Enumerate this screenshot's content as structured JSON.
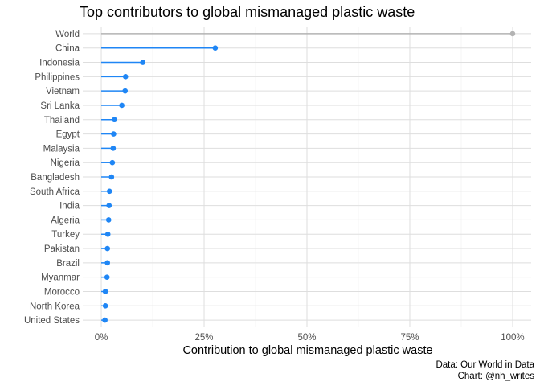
{
  "chart_data": {
    "type": "lollipop",
    "title": "Top contributors to global mismanaged plastic waste",
    "xlabel": "Contribution to global mismanaged plastic waste",
    "ylabel": "",
    "xlim": [
      -4.5,
      104.5
    ],
    "x_ticks": [
      0,
      25,
      50,
      75,
      100
    ],
    "x_tick_labels": [
      "0%",
      "25%",
      "50%",
      "75%",
      "100%"
    ],
    "grid": true,
    "categories": [
      "World",
      "China",
      "Indonesia",
      "Philippines",
      "Vietnam",
      "Sri Lanka",
      "Thailand",
      "Egypt",
      "Malaysia",
      "Nigeria",
      "Bangladesh",
      "South Africa",
      "India",
      "Algeria",
      "Turkey",
      "Pakistan",
      "Brazil",
      "Myanmar",
      "Morocco",
      "North Korea",
      "United States"
    ],
    "values": [
      100,
      27.7,
      10.1,
      5.9,
      5.8,
      5.0,
      3.2,
      3.0,
      2.9,
      2.7,
      2.5,
      2.0,
      1.9,
      1.8,
      1.6,
      1.5,
      1.5,
      1.4,
      1.0,
      1.0,
      0.9
    ],
    "colors": {
      "highlight": "#b3b3b3",
      "default": "#1f86f5",
      "grid_major": "#dedede",
      "grid_minor": "#efefef"
    },
    "highlight_category": "World",
    "caption": [
      "Data: Our World in Data",
      "Chart: @nh_writes"
    ]
  }
}
